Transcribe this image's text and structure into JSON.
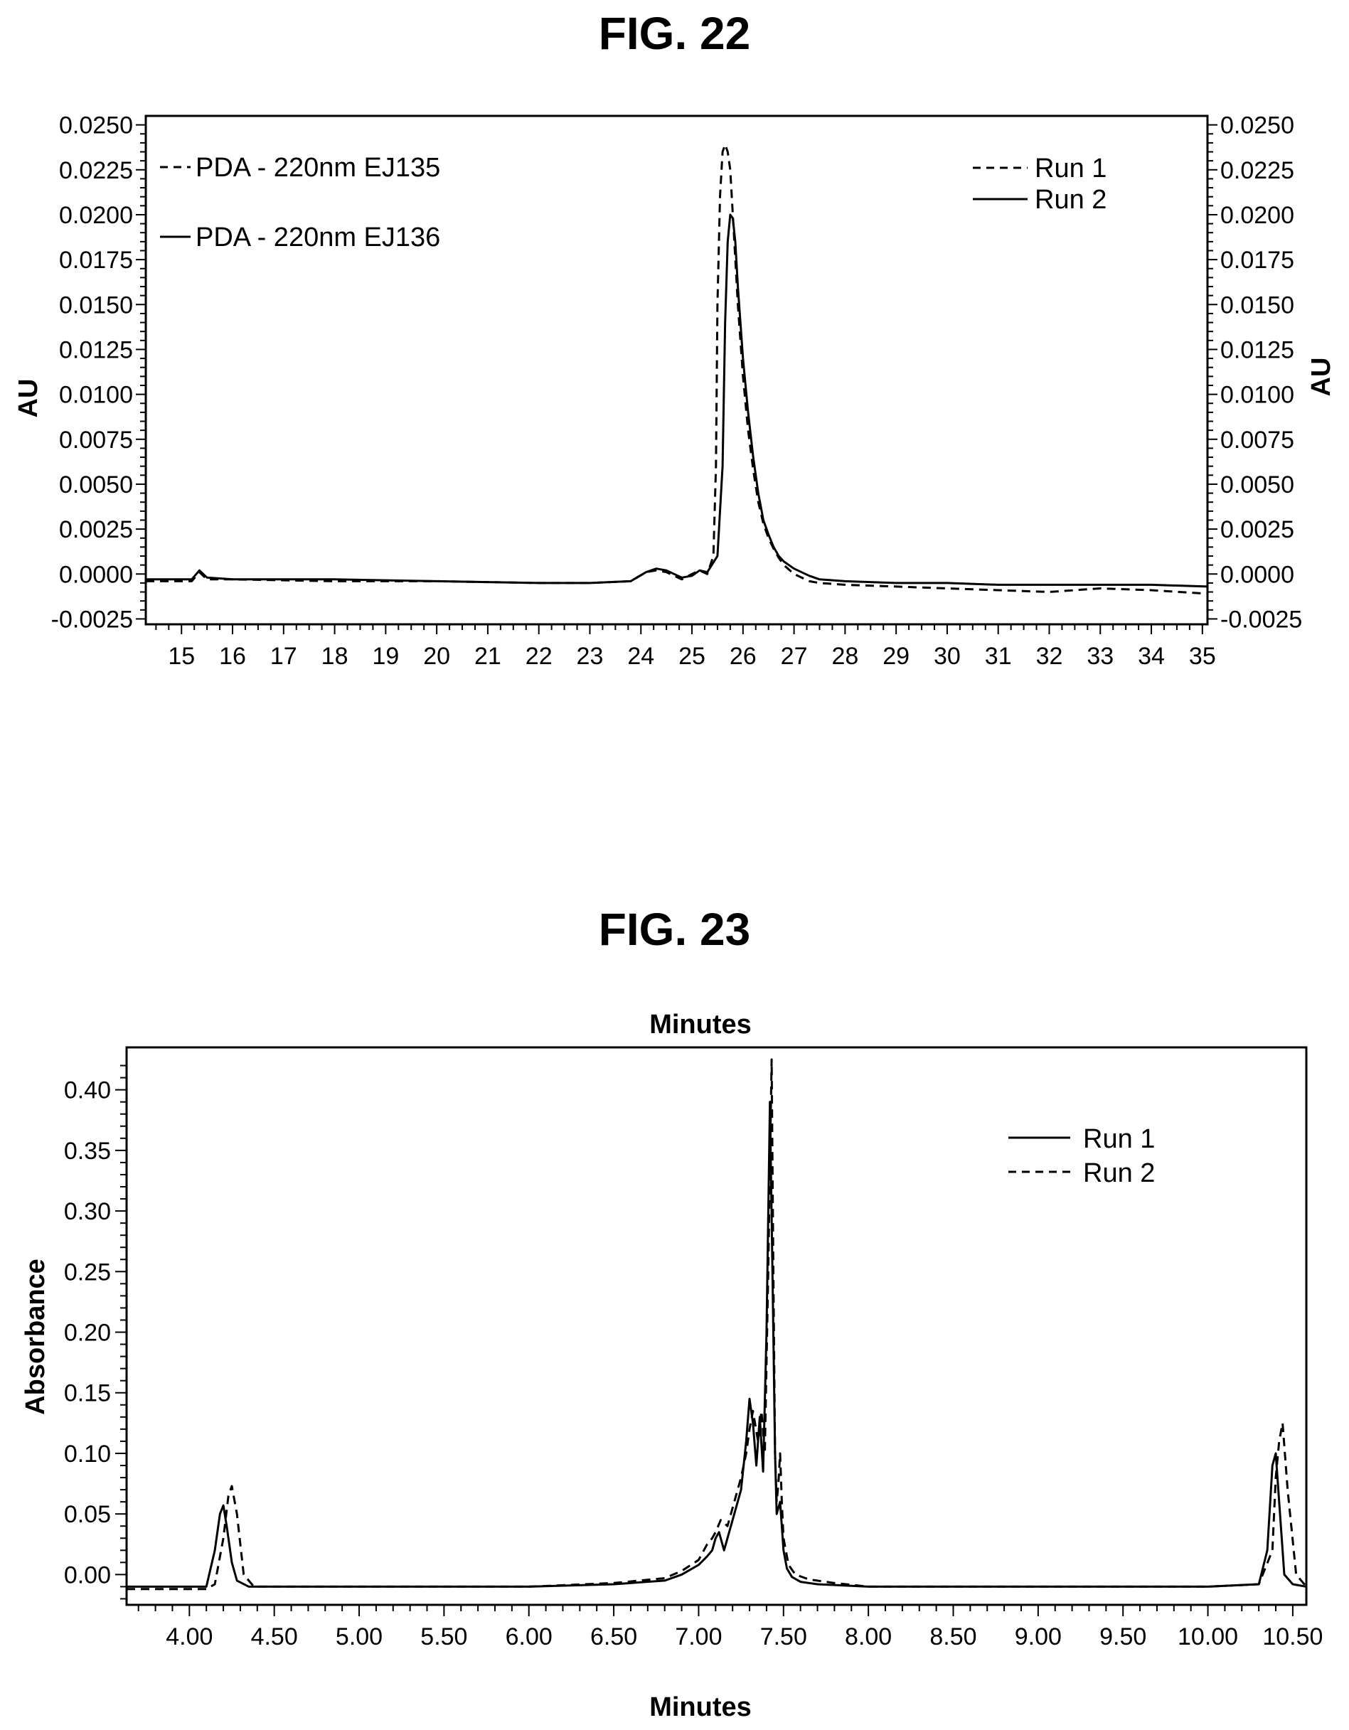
{
  "figures": {
    "fig22_title": "FIG. 22",
    "fig23_title": "FIG. 23"
  },
  "chart_data": [
    {
      "type": "line",
      "title": "FIG. 22",
      "xlabel": "",
      "ylabel": "AU",
      "ylabel_right": "AU",
      "xlim": [
        14.3,
        35.1
      ],
      "ylim": [
        -0.0028,
        0.0255
      ],
      "xticks": [
        15,
        16,
        17,
        18,
        19,
        20,
        21,
        22,
        23,
        24,
        25,
        26,
        27,
        28,
        29,
        30,
        31,
        32,
        33,
        34,
        35
      ],
      "yticks": [
        -0.0025,
        0.0,
        0.0025,
        0.005,
        0.0075,
        0.01,
        0.0125,
        0.015,
        0.0175,
        0.02,
        0.0225,
        0.025
      ],
      "ytick_labels": [
        "-0.0025",
        "0.0000",
        "0.0025",
        "0.0050",
        "0.0075",
        "0.0100",
        "0.0125",
        "0.0150",
        "0.0175",
        "0.0200",
        "0.0225",
        "0.0250"
      ],
      "grid": false,
      "legends": [
        {
          "position": "top-left",
          "entries": [
            {
              "label": "PDA - 220nm EJ135",
              "style": "dashed"
            },
            {
              "label": "PDA - 220nm EJ136",
              "style": "solid"
            }
          ]
        },
        {
          "position": "top-right",
          "entries": [
            {
              "label": "Run 1",
              "style": "dashed"
            },
            {
              "label": "Run 2",
              "style": "solid"
            }
          ]
        }
      ],
      "series": [
        {
          "style": "dashed",
          "x": [
            14.3,
            15.2,
            15.35,
            15.5,
            16,
            18,
            20,
            22,
            23,
            23.8,
            24.1,
            24.3,
            24.5,
            24.8,
            25.0,
            25.15,
            25.3,
            25.42,
            25.47,
            25.5,
            25.55,
            25.6,
            25.65,
            25.7,
            25.75,
            25.8,
            25.9,
            26.0,
            26.1,
            26.2,
            26.3,
            26.4,
            26.5,
            26.6,
            26.7,
            26.8,
            27.0,
            27.3,
            27.5,
            28,
            29,
            30,
            31,
            32,
            32.5,
            33,
            34,
            35.1
          ],
          "y": [
            -0.0004,
            -0.0004,
            0.0001,
            -0.0003,
            -0.0003,
            -0.0004,
            -0.0004,
            -0.0005,
            -0.0005,
            -0.0004,
            0.0001,
            0.0002,
            0.0001,
            -0.0003,
            0.0,
            0.0002,
            0.0,
            0.001,
            0.006,
            0.015,
            0.021,
            0.0235,
            0.0239,
            0.0235,
            0.0225,
            0.02,
            0.015,
            0.011,
            0.008,
            0.0058,
            0.004,
            0.0028,
            0.002,
            0.0014,
            0.0009,
            0.0005,
            0.0,
            -0.0004,
            -0.0005,
            -0.0006,
            -0.0007,
            -0.0008,
            -0.0009,
            -0.001,
            -0.0009,
            -0.0008,
            -0.0009,
            -0.0011
          ]
        },
        {
          "style": "solid",
          "x": [
            14.3,
            15.2,
            15.35,
            15.5,
            16,
            18,
            20,
            22,
            23,
            23.8,
            24.1,
            24.3,
            24.5,
            24.8,
            25.0,
            25.15,
            25.3,
            25.5,
            25.6,
            25.65,
            25.7,
            25.75,
            25.8,
            25.85,
            25.9,
            26.0,
            26.1,
            26.2,
            26.3,
            26.4,
            26.5,
            26.6,
            26.7,
            26.8,
            27.0,
            27.3,
            27.5,
            28,
            29,
            30,
            31,
            32,
            33,
            34,
            35.1
          ],
          "y": [
            -0.0003,
            -0.0003,
            0.0002,
            -0.0002,
            -0.0003,
            -0.0003,
            -0.0004,
            -0.0005,
            -0.0005,
            -0.0004,
            0.0001,
            0.0003,
            0.0002,
            -0.0002,
            -0.0001,
            0.0002,
            0.0001,
            0.001,
            0.006,
            0.014,
            0.0185,
            0.02,
            0.0198,
            0.0185,
            0.016,
            0.012,
            0.009,
            0.0065,
            0.0045,
            0.003,
            0.0022,
            0.0015,
            0.001,
            0.0007,
            0.0003,
            -0.0001,
            -0.0003,
            -0.0004,
            -0.0005,
            -0.0005,
            -0.0006,
            -0.0006,
            -0.0006,
            -0.0006,
            -0.0007
          ]
        }
      ]
    },
    {
      "type": "line",
      "title": "Minutes",
      "xlabel": "Minutes",
      "ylabel": "Absorbance",
      "xlim": [
        3.63,
        10.58
      ],
      "ylim": [
        -0.025,
        0.435
      ],
      "xticks": [
        4.0,
        4.5,
        5.0,
        5.5,
        6.0,
        6.5,
        7.0,
        7.5,
        8.0,
        8.5,
        9.0,
        9.5,
        10.0,
        10.5
      ],
      "xtick_labels": [
        "4.00",
        "4.50",
        "5.00",
        "5.50",
        "6.00",
        "6.50",
        "7.00",
        "7.50",
        "8.00",
        "8.50",
        "9.00",
        "9.50",
        "10.00",
        "10.50"
      ],
      "yticks": [
        0.0,
        0.05,
        0.1,
        0.15,
        0.2,
        0.25,
        0.3,
        0.35,
        0.4
      ],
      "ytick_labels": [
        "0.00",
        "0.05",
        "0.10",
        "0.15",
        "0.20",
        "0.25",
        "0.30",
        "0.35",
        "0.40"
      ],
      "grid": false,
      "legends": [
        {
          "position": "top-right",
          "entries": [
            {
              "label": "Run 1",
              "style": "solid"
            },
            {
              "label": "Run 2",
              "style": "dashed"
            }
          ]
        }
      ],
      "series": [
        {
          "style": "solid",
          "x": [
            3.63,
            4.1,
            4.15,
            4.18,
            4.2,
            4.22,
            4.25,
            4.28,
            4.35,
            5,
            6,
            6.5,
            6.8,
            6.9,
            7.0,
            7.05,
            7.08,
            7.1,
            7.12,
            7.15,
            7.2,
            7.25,
            7.28,
            7.3,
            7.32,
            7.34,
            7.36,
            7.38,
            7.4,
            7.42,
            7.44,
            7.45,
            7.46,
            7.48,
            7.5,
            7.52,
            7.55,
            7.6,
            7.7,
            8,
            8.5,
            9,
            9.5,
            10.0,
            10.3,
            10.35,
            10.38,
            10.4,
            10.42,
            10.45,
            10.5,
            10.58
          ],
          "y": [
            -0.01,
            -0.01,
            0.02,
            0.05,
            0.057,
            0.04,
            0.01,
            -0.005,
            -0.01,
            -0.01,
            -0.01,
            -0.008,
            -0.005,
            0.0,
            0.008,
            0.015,
            0.02,
            0.03,
            0.035,
            0.02,
            0.045,
            0.07,
            0.11,
            0.145,
            0.125,
            0.09,
            0.13,
            0.085,
            0.2,
            0.39,
            0.2,
            0.1,
            0.05,
            0.06,
            0.02,
            0.005,
            -0.002,
            -0.006,
            -0.008,
            -0.01,
            -0.01,
            -0.01,
            -0.01,
            -0.01,
            -0.008,
            0.02,
            0.09,
            0.1,
            0.06,
            0.0,
            -0.008,
            -0.01
          ]
        },
        {
          "style": "dashed",
          "x": [
            3.63,
            4.1,
            4.15,
            4.2,
            4.23,
            4.25,
            4.28,
            4.32,
            4.38,
            5,
            6,
            6.5,
            6.8,
            6.9,
            7.0,
            7.05,
            7.08,
            7.1,
            7.13,
            7.17,
            7.2,
            7.25,
            7.28,
            7.3,
            7.32,
            7.35,
            7.37,
            7.39,
            7.41,
            7.43,
            7.44,
            7.45,
            7.46,
            7.47,
            7.48,
            7.49,
            7.5,
            7.53,
            7.57,
            7.65,
            7.8,
            8,
            8.5,
            9,
            9.5,
            10.0,
            10.3,
            10.38,
            10.4,
            10.42,
            10.44,
            10.47,
            10.52,
            10.58
          ],
          "y": [
            -0.012,
            -0.012,
            -0.008,
            0.03,
            0.065,
            0.073,
            0.05,
            0.0,
            -0.01,
            -0.01,
            -0.01,
            -0.007,
            -0.003,
            0.003,
            0.012,
            0.025,
            0.03,
            0.035,
            0.045,
            0.04,
            0.055,
            0.08,
            0.1,
            0.12,
            0.135,
            0.11,
            0.135,
            0.1,
            0.25,
            0.425,
            0.25,
            0.1,
            0.06,
            0.075,
            0.1,
            0.06,
            0.03,
            0.008,
            0.0,
            -0.004,
            -0.007,
            -0.01,
            -0.01,
            -0.01,
            -0.01,
            -0.01,
            -0.008,
            0.02,
            0.08,
            0.11,
            0.125,
            0.07,
            0.0,
            -0.01
          ]
        }
      ]
    }
  ]
}
